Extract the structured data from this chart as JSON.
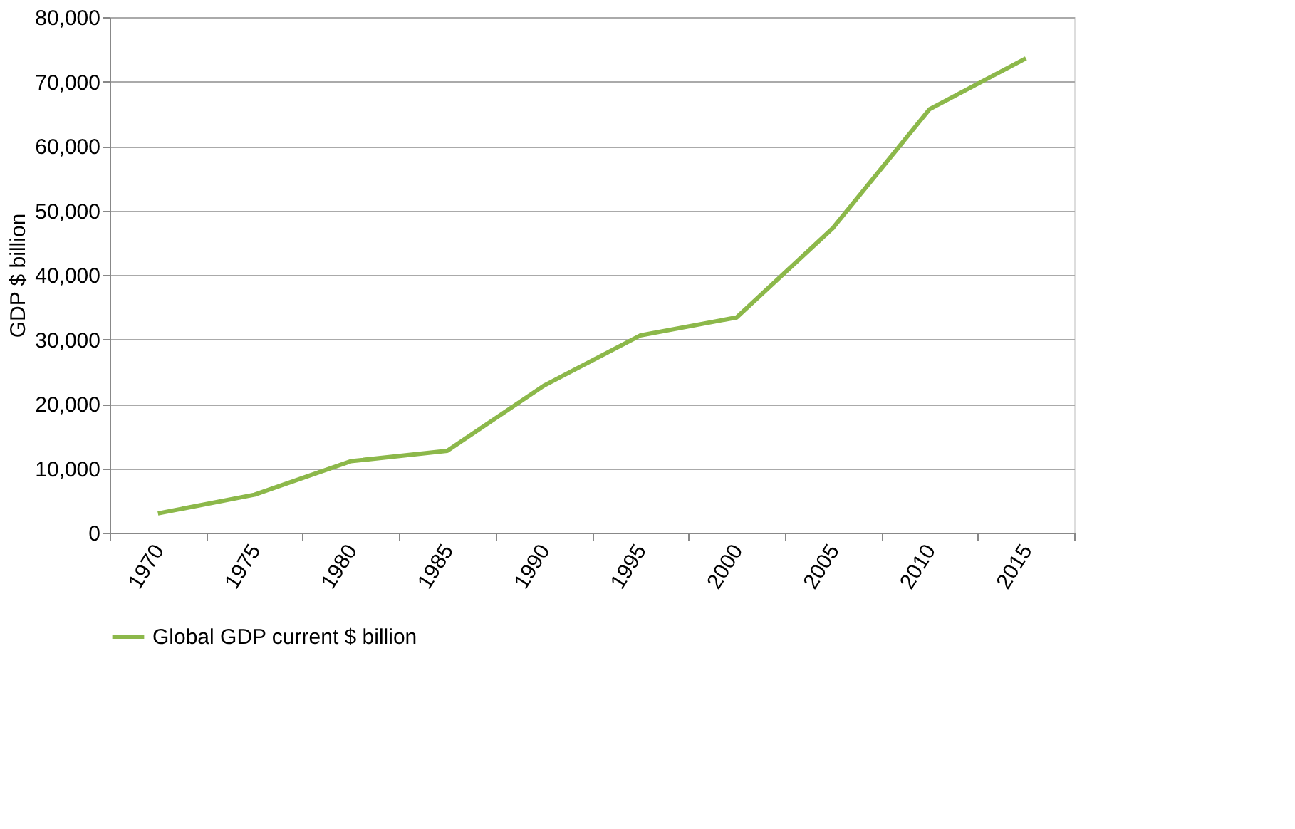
{
  "chart_data": {
    "type": "line",
    "ylabel": "GDP $ billion",
    "categories": [
      "1970",
      "1975",
      "1980",
      "1985",
      "1990",
      "1995",
      "2000",
      "2005",
      "2010",
      "2015"
    ],
    "series": [
      {
        "name": "Global GDP current $ billion",
        "color": "#8cb84a",
        "values": [
          3000,
          5900,
          11100,
          12700,
          22800,
          30600,
          33400,
          47300,
          65700,
          73600
        ]
      }
    ],
    "ylim": [
      0,
      80000
    ],
    "yticks": [
      0,
      {
        "value": 10000,
        "label": "10,000"
      },
      {
        "value": 20000,
        "label": "20,000"
      },
      {
        "value": 30000,
        "label": "30,000"
      },
      {
        "value": 40000,
        "label": "40,000"
      },
      {
        "value": 50000,
        "label": "50,000"
      },
      {
        "value": 60000,
        "label": "60,000"
      },
      {
        "value": 70000,
        "label": "70,000"
      },
      {
        "value": 80000,
        "label": "80,000"
      }
    ],
    "grid": "y",
    "legend": "bottom",
    "marker": "none",
    "line_style": "solid"
  }
}
